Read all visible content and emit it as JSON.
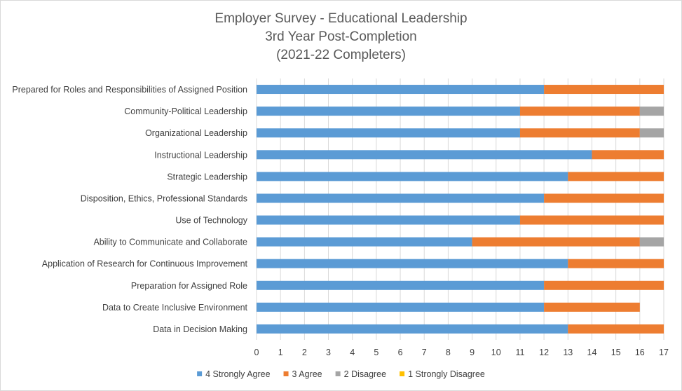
{
  "chart_data": {
    "type": "bar",
    "orientation": "horizontal",
    "stacked": true,
    "title": [
      "Employer Survey - Educational Leadership",
      "3rd Year Post-Completion",
      "(2021-22 Completers)"
    ],
    "categories": [
      "Prepared for Roles and Responsibilities of Assigned Position",
      "Community-Political Leadership",
      "Organizational Leadership",
      "Instructional Leadership",
      "Strategic Leadership",
      "Disposition, Ethics, Professional Standards",
      "Use of Technology",
      "Ability to Communicate and Collaborate",
      "Application of Research for Continuous Improvement",
      "Preparation for Assigned Role",
      "Data to Create Inclusive Environment",
      "Data in Decision Making"
    ],
    "series": [
      {
        "name": "4 Strongly Agree",
        "color": "#5b9bd5",
        "values": [
          12,
          11,
          11,
          14,
          13,
          12,
          11,
          9,
          13,
          12,
          12,
          13
        ]
      },
      {
        "name": "3 Agree",
        "color": "#ed7d31",
        "values": [
          5,
          5,
          5,
          3,
          4,
          5,
          6,
          7,
          4,
          5,
          4,
          4
        ]
      },
      {
        "name": "2 Disagree",
        "color": "#a5a5a5",
        "values": [
          0,
          1,
          1,
          0,
          0,
          0,
          0,
          1,
          0,
          0,
          0,
          0
        ]
      },
      {
        "name": "1 Strongly Disagree",
        "color": "#ffc000",
        "values": [
          0,
          0,
          0,
          0,
          0,
          0,
          0,
          0,
          0,
          0,
          0,
          0
        ]
      }
    ],
    "xlim": [
      0,
      17
    ],
    "xticks": [
      "0",
      "1",
      "2",
      "3",
      "4",
      "5",
      "6",
      "7",
      "8",
      "9",
      "10",
      "11",
      "12",
      "13",
      "14",
      "15",
      "16",
      "17"
    ],
    "grid": "vertical",
    "legend": "bottom"
  }
}
